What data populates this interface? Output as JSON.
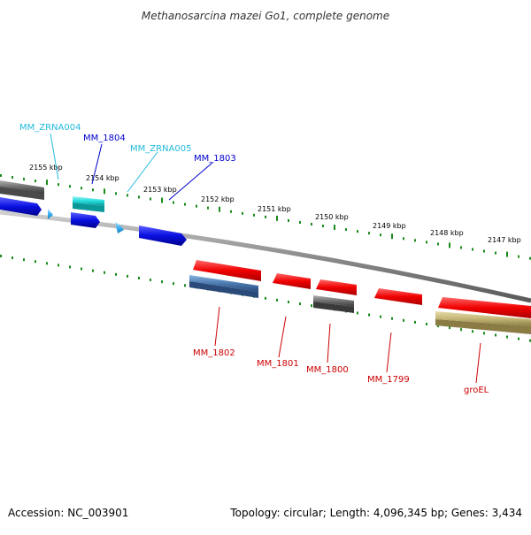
{
  "title": "Methanosarcina mazei Go1, complete genome",
  "footer": {
    "accession": "Accession: NC_003901",
    "summary": "Topology: circular; Length: 4,096,345 bp; Genes: 3,434"
  },
  "colors": {
    "backbone": "#8c8c8c",
    "tick": "#1a8a1a",
    "gene_blue": "#0a10e0",
    "gene_cyan": "#22dada",
    "gene_red": "#f00000",
    "gene_gray": "#6e6e6e",
    "gene_steel": "#4a7ab0",
    "gene_olive": "#c4b676",
    "label_red": "#cc0000",
    "label_blue": "#0000cc",
    "label_cyan": "#22bbdd"
  },
  "kbp_labels": [
    "2155 kbp",
    "2154 kbp",
    "2153 kbp",
    "2152 kbp",
    "2151 kbp",
    "2150 kbp",
    "2149 kbp",
    "2148 kbp",
    "2147 kbp"
  ],
  "gene_labels": {
    "mm_zrna004": "MM_ZRNA004",
    "mm_1804": "MM_1804",
    "mm_zrna005": "MM_ZRNA005",
    "mm_1803": "MM_1803",
    "mm_1802": "MM_1802",
    "mm_1801": "MM_1801",
    "mm_1800": "MM_1800",
    "mm_1799": "MM_1799",
    "groel": "groEL"
  }
}
